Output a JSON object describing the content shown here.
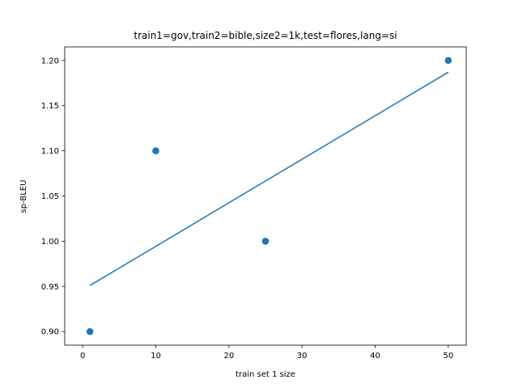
{
  "chart_data": {
    "type": "scatter",
    "title": "train1=gov,train2=bible,size2=1k,test=flores,lang=si",
    "xlabel": "train set 1 size",
    "ylabel": "sp-BLEU",
    "xlim": [
      -2.45,
      52.45
    ],
    "ylim": [
      0.885,
      1.215
    ],
    "x_ticks": [
      0,
      10,
      20,
      30,
      40,
      50
    ],
    "x_tick_labels": [
      "0",
      "10",
      "20",
      "30",
      "40",
      "50"
    ],
    "y_ticks": [
      0.9,
      0.95,
      1.0,
      1.05,
      1.1,
      1.15,
      1.2
    ],
    "y_tick_labels": [
      "0.90",
      "0.95",
      "1.00",
      "1.05",
      "1.10",
      "1.15",
      "1.20"
    ],
    "grid": false,
    "series": [
      {
        "kind": "points",
        "color": "#1f77b4",
        "x": [
          1,
          10,
          25,
          50
        ],
        "y": [
          0.9,
          1.1,
          1.0,
          1.2
        ]
      },
      {
        "kind": "fit-line",
        "color": "#1f77b4",
        "x": [
          1,
          50
        ],
        "y": [
          0.951,
          1.187
        ]
      }
    ]
  }
}
